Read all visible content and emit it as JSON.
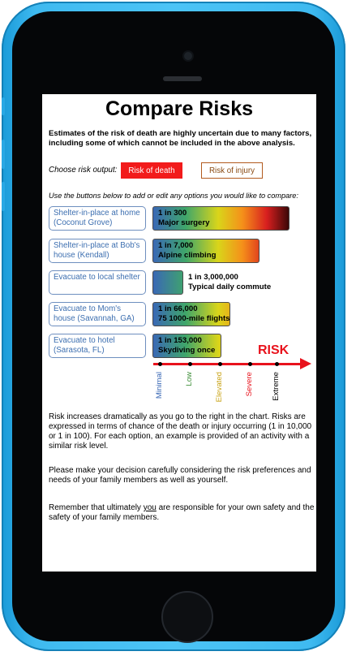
{
  "title": "Compare Risks",
  "note": "Estimates of the risk of death are highly uncertain due to many factors, including some of which cannot be included in the above analysis.",
  "risk_output": {
    "label": "Choose risk output:",
    "death_label": "Risk of death",
    "injury_label": "Risk of injury",
    "selected": "Risk of death",
    "selected_color": "#f21b1b"
  },
  "instructions": "Use the buttons below to add or edit any options you would like to compare:",
  "options": [
    {
      "label": "Shelter-in-place at home (Coconut Grove)",
      "risk": "1 in 300",
      "example": "Major surgery",
      "level": 0.9
    },
    {
      "label": "Shelter-in-place at Bob's house (Kendall)",
      "risk": "1 in 7,000",
      "example": "Alpine climbing",
      "level": 0.7
    },
    {
      "label": "Evacuate to local shelter",
      "risk": "1 in 3,000,000",
      "example": "Typical daily commute",
      "level": 0.2
    },
    {
      "label": "Evacuate to Mom's house (Savannah, GA)",
      "risk": "1 in 66,000",
      "example": "75 1000-mile flights",
      "level": 0.51
    },
    {
      "label": "Evacuate to hotel (Sarasota, FL)",
      "risk": "1 in 153,000",
      "example": "Skydiving once",
      "level": 0.45
    }
  ],
  "scale": {
    "title": "RISK",
    "levels": [
      {
        "label": "Minimal",
        "color": "#3a68b5"
      },
      {
        "label": "Low",
        "color": "#3f8f3a"
      },
      {
        "label": "Elevated",
        "color": "#c9a316"
      },
      {
        "label": "Severe",
        "color": "#e8121c"
      },
      {
        "label": "Extreme",
        "color": "#000000"
      }
    ]
  },
  "paragraphs": {
    "p1": "Risk increases dramatically as you go to the right in the chart. Risks are expressed in terms of chance of the death or injury occurring (1 in 10,000 or 1 in 100). For each option, an example is provided of an activity with a similar risk level.",
    "p2": "Please make your decision carefully considering the risk preferences and needs of your family members as well as yourself.",
    "p3_before": "Remember that ultimately ",
    "p3_emph": "you",
    "p3_after": " are responsible for your own safety and the safety of your family members."
  }
}
